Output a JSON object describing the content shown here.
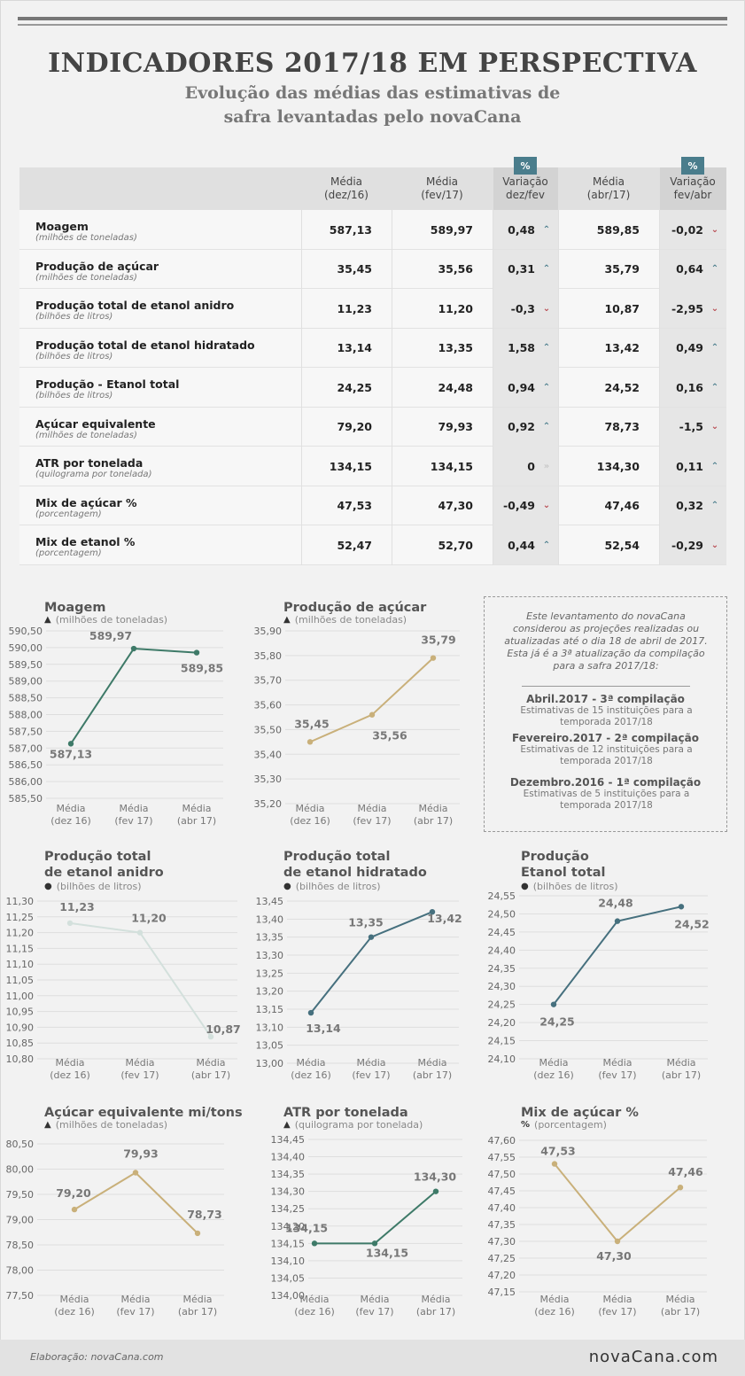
{
  "header": {
    "title": "INDICADORES 2017/18 EM PERSPECTIVA",
    "subtitle_line1": "Evolução das médias das estimativas de",
    "subtitle_line2": "safra levantadas pelo novaCana"
  },
  "table": {
    "columns": [
      {
        "l1": "Média",
        "l2": "(dez/16)"
      },
      {
        "l1": "Média",
        "l2": "(fev/17)"
      },
      {
        "l1": "Variação",
        "l2": "dez/fev",
        "badge": "%"
      },
      {
        "l1": "Média",
        "l2": "(abr/17)"
      },
      {
        "l1": "Variação",
        "l2": "fev/abr",
        "badge": "%"
      }
    ],
    "rows": [
      {
        "name": "Moagem",
        "unit": "(milhões de toneladas)",
        "dez": "587,13",
        "fev": "589,97",
        "var1": "0,48",
        "dir1": "up",
        "abr": "589,85",
        "var2": "-0,02",
        "dir2": "down"
      },
      {
        "name": "Produção de açúcar",
        "unit": "(milhões de toneladas)",
        "dez": "35,45",
        "fev": "35,56",
        "var1": "0,31",
        "dir1": "up",
        "abr": "35,79",
        "var2": "0,64",
        "dir2": "up"
      },
      {
        "name": "Produção total de etanol anidro",
        "unit": "(bilhões de litros)",
        "dez": "11,23",
        "fev": "11,20",
        "var1": "-0,3",
        "dir1": "down",
        "abr": "10,87",
        "var2": "-2,95",
        "dir2": "down"
      },
      {
        "name": "Produção total de etanol hidratado",
        "unit": "(bilhões de litros)",
        "dez": "13,14",
        "fev": "13,35",
        "var1": "1,58",
        "dir1": "up",
        "abr": "13,42",
        "var2": "0,49",
        "dir2": "up"
      },
      {
        "name": "Produção - Etanol total",
        "unit": "(bilhões de litros)",
        "dez": "24,25",
        "fev": "24,48",
        "var1": "0,94",
        "dir1": "up",
        "abr": "24,52",
        "var2": "0,16",
        "dir2": "up"
      },
      {
        "name": "Açúcar equivalente",
        "unit": "(milhões de toneladas)",
        "dez": "79,20",
        "fev": "79,93",
        "var1": "0,92",
        "dir1": "up",
        "abr": "78,73",
        "var2": "-1,5",
        "dir2": "down"
      },
      {
        "name": "ATR por tonelada",
        "unit": "(quilograma por tonelada)",
        "dez": "134,15",
        "fev": "134,15",
        "var1": "0",
        "dir1": "eq",
        "abr": "134,30",
        "var2": "0,11",
        "dir2": "up"
      },
      {
        "name": "Mix de açúcar %",
        "unit": "(porcentagem)",
        "dez": "47,53",
        "fev": "47,30",
        "var1": "-0,49",
        "dir1": "down",
        "abr": "47,46",
        "var2": "0,32",
        "dir2": "up"
      },
      {
        "name": "Mix de etanol %",
        "unit": "(porcentagem)",
        "dez": "52,47",
        "fev": "52,70",
        "var1": "0,44",
        "dir1": "up",
        "abr": "52,54",
        "var2": "-0,29",
        "dir2": "down"
      }
    ]
  },
  "info_box": {
    "intro": "Este levantamento do novaCana considerou as projeções realizadas ou atualizadas até o dia 18 de abril de 2017. Esta já é a 3ª atualização da compilação para a safra 2017/18:",
    "items": [
      {
        "title": "Abril.2017 - 3ª compilação",
        "desc": "Estimativas de 15 instituições para a temporada 2017/18"
      },
      {
        "title": "Fevereiro.2017 - 2ª compilação",
        "desc": "Estimativas de 12 instituições para a temporada 2017/18"
      },
      {
        "title": "Dezembro.2016 - 1ª compilação",
        "desc": "Estimativas de 5 instituições para a temporada 2017/18"
      }
    ]
  },
  "chart_data": [
    {
      "type": "line",
      "title": "Moagem",
      "unit": "(milhões de toneladas)",
      "unit_icon": "weight-icon",
      "color": "#3e7a68",
      "categories": [
        "Média\n(dez 16)",
        "Média\n(fev 17)",
        "Média\n(abr 17)"
      ],
      "values": [
        587.13,
        589.97,
        589.85
      ],
      "value_labels": [
        "587,13",
        "589,97",
        "589,85"
      ],
      "yticks": [
        "590,50",
        "590,00",
        "589,50",
        "589,00",
        "588,50",
        "588,00",
        "587,50",
        "587,00",
        "586,50",
        "586,00",
        "585,50"
      ],
      "ylim": [
        585.5,
        590.5
      ]
    },
    {
      "type": "line",
      "title": "Produção de açúcar",
      "unit": "(milhões de toneladas)",
      "unit_icon": "weight-icon",
      "color": "#c9b07a",
      "categories": [
        "Média\n(dez 16)",
        "Média\n(fev 17)",
        "Média\n(abr 17)"
      ],
      "values": [
        35.45,
        35.56,
        35.79
      ],
      "value_labels": [
        "35,45",
        "35,56",
        "35,79"
      ],
      "yticks": [
        "35,90",
        "35,80",
        "35,70",
        "35,60",
        "35,50",
        "35,40",
        "35,30",
        "35,20"
      ],
      "ylim": [
        35.2,
        35.9
      ]
    },
    {
      "type": "line",
      "title": "Produção total\nde etanol anidro",
      "unit": "(bilhões de litros)",
      "unit_icon": "drop-icon",
      "color": "#d3e0dc",
      "categories": [
        "Média\n(dez 16)",
        "Média\n(fev 17)",
        "Média\n(abr 17)"
      ],
      "values": [
        11.23,
        11.2,
        10.87
      ],
      "value_labels": [
        "11,23",
        "11,20",
        "10,87"
      ],
      "yticks": [
        "11,30",
        "11,25",
        "11,20",
        "11,15",
        "11,10",
        "11,05",
        "11,00",
        "10,95",
        "10,90",
        "10,85",
        "10,80"
      ],
      "ylim": [
        10.8,
        11.3
      ]
    },
    {
      "type": "line",
      "title": "Produção total\nde etanol hidratado",
      "unit": "(bilhões de litros)",
      "unit_icon": "drop-icon",
      "color": "#46707e",
      "categories": [
        "Média\n(dez 16)",
        "Média\n(fev 17)",
        "Média\n(abr 17)"
      ],
      "values": [
        13.14,
        13.35,
        13.42
      ],
      "value_labels": [
        "13,14",
        "13,35",
        "13,42"
      ],
      "yticks": [
        "13,45",
        "13,40",
        "13,35",
        "13,30",
        "13,25",
        "13,20",
        "13,15",
        "13,10",
        "13,05",
        "13,00"
      ],
      "ylim": [
        13.0,
        13.45
      ]
    },
    {
      "type": "line",
      "title": "Produção\nEtanol total",
      "unit": "(bilhões de litros)",
      "unit_icon": "drop-icon",
      "color": "#46707e",
      "categories": [
        "Média\n(dez 16)",
        "Média\n(fev 17)",
        "Média\n(abr 17)"
      ],
      "values": [
        24.25,
        24.48,
        24.52
      ],
      "value_labels": [
        "24,25",
        "24,48",
        "24,52"
      ],
      "yticks": [
        "24,55",
        "24,50",
        "24,45",
        "24,40",
        "24,35",
        "24,30",
        "24,25",
        "24,20",
        "24,15",
        "24,10"
      ],
      "ylim": [
        24.1,
        24.55
      ]
    },
    {
      "type": "line",
      "title": "Açúcar equivalente mi/tons",
      "unit": "(milhões de toneladas)",
      "unit_icon": "weight-icon",
      "color": "#c9b07a",
      "categories": [
        "Média\n(dez 16)",
        "Média\n(fev 17)",
        "Média\n(abr 17)"
      ],
      "values": [
        79.2,
        79.93,
        78.73
      ],
      "value_labels": [
        "79,20",
        "79,93",
        "78,73"
      ],
      "yticks": [
        "80,50",
        "80,00",
        "79,50",
        "79,00",
        "78,50",
        "78,00",
        "77,50"
      ],
      "ylim": [
        77.5,
        80.5
      ]
    },
    {
      "type": "line",
      "title": "ATR por tonelada",
      "unit": "(quilograma por tonelada)",
      "unit_icon": "weight-icon",
      "color": "#3e7a68",
      "categories": [
        "Média\n(dez 16)",
        "Média\n(fev 17)",
        "Média\n(abr 17)"
      ],
      "values": [
        134.15,
        134.15,
        134.3
      ],
      "value_labels": [
        "134,15",
        "134,15",
        "134,30"
      ],
      "yticks": [
        "134,45",
        "134,40",
        "134,35",
        "134,30",
        "134,25",
        "134,20",
        "134,15",
        "134,10",
        "134,05",
        "134,00"
      ],
      "ylim": [
        134.0,
        134.45
      ]
    },
    {
      "type": "line",
      "title": "Mix de açúcar %",
      "unit": "(porcentagem)",
      "unit_icon": "percent-icon",
      "color": "#c9b07a",
      "categories": [
        "Média\n(dez 16)",
        "Média\n(fev 17)",
        "Média\n(abr 17)"
      ],
      "values": [
        47.53,
        47.3,
        47.46
      ],
      "value_labels": [
        "47,53",
        "47,30",
        "47,46"
      ],
      "yticks": [
        "47,60",
        "47,55",
        "47,50",
        "47,45",
        "47,40",
        "47,35",
        "47,30",
        "47,25",
        "47,20",
        "47,15"
      ],
      "ylim": [
        47.15,
        47.6
      ]
    }
  ],
  "footer": {
    "credit": "Elaboração: novaCana.com",
    "logo": "novaCana.com"
  }
}
